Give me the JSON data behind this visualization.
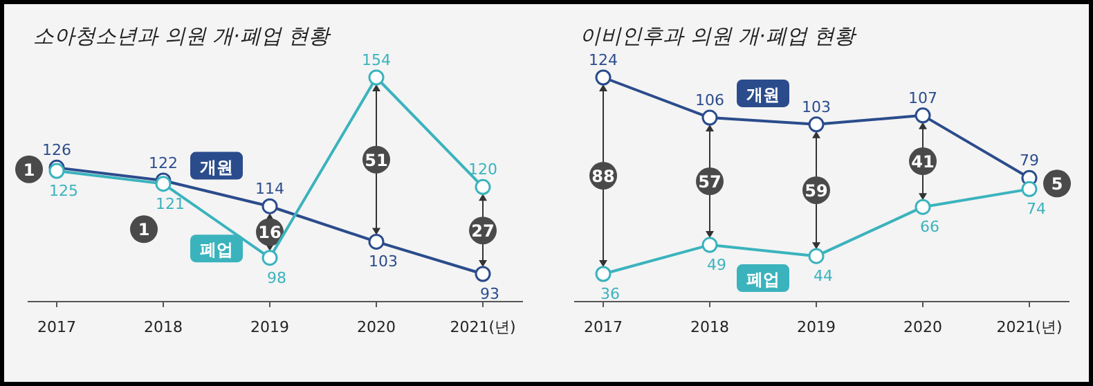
{
  "chart_data": [
    {
      "type": "line",
      "title": "소아청소년과 의원 개·폐업 현황",
      "categories": [
        "2017",
        "2018",
        "2019",
        "2020",
        "2021(년)"
      ],
      "marker": "circle",
      "data_labels": true,
      "series": [
        {
          "name": "개원",
          "color": "#2b4c8c",
          "values": [
            126,
            122,
            114,
            103,
            93
          ]
        },
        {
          "name": "폐업",
          "color": "#3bb3bd",
          "values": [
            125,
            121,
            98,
            154,
            120
          ]
        }
      ],
      "annotations": [
        {
          "text": "1",
          "x": "2017",
          "y": 125.5
        },
        {
          "text": "1",
          "x": "2018",
          "y": 121.5
        },
        {
          "text": "16",
          "x": "2019",
          "y": 106
        },
        {
          "text": "51",
          "x": "2020",
          "y": 128.5
        },
        {
          "text": "27",
          "x": "2021(년)",
          "y": 106.5
        }
      ]
    },
    {
      "type": "line",
      "title": "이비인후과 의원 개·폐업 현황",
      "categories": [
        "2017",
        "2018",
        "2019",
        "2020",
        "2021(년)"
      ],
      "marker": "circle",
      "data_labels": true,
      "series": [
        {
          "name": "개원",
          "color": "#2b4c8c",
          "values": [
            124,
            106,
            103,
            107,
            79
          ]
        },
        {
          "name": "폐업",
          "color": "#3bb3bd",
          "values": [
            36,
            49,
            44,
            66,
            74
          ]
        }
      ],
      "annotations": [
        {
          "text": "88",
          "x": "2017",
          "y": 80
        },
        {
          "text": "57",
          "x": "2018",
          "y": 77.5
        },
        {
          "text": "59",
          "x": "2019",
          "y": 73.5
        },
        {
          "text": "41",
          "x": "2020",
          "y": 86.5
        },
        {
          "text": "5",
          "x": "2021(년)",
          "y": 76.5
        }
      ]
    }
  ]
}
